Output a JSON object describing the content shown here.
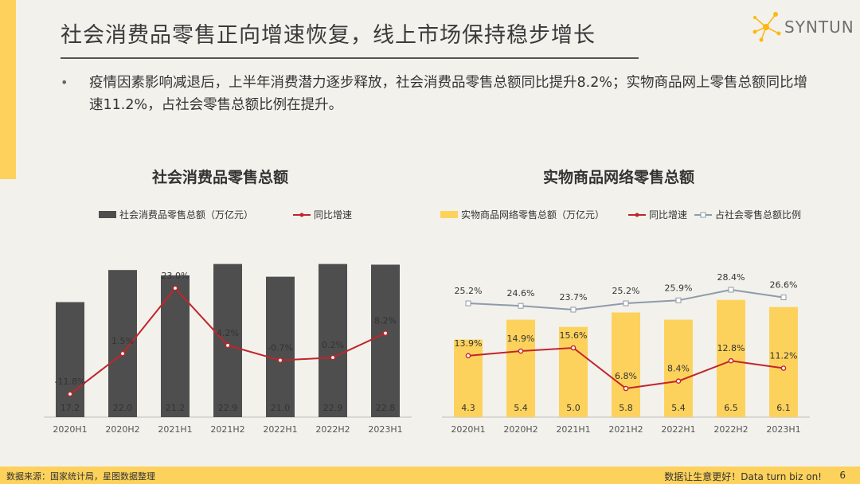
{
  "header": {
    "title": "社会消费品零售正向增速恢复，线上市场保持稳步增长",
    "logo_text": "SYNTUN"
  },
  "bullet": {
    "text": "疫情因素影响减退后，上半年消费潜力逐步释放，社会消费品零售总额同比提升8.2%；实物商品网上零售总额同比增速11.2%，占社会零售总额比例在提升。"
  },
  "footer": {
    "source": "数据来源：国家统计局，星图数据整理",
    "slogan": "数据让生意更好！Data turn biz on!",
    "page": "6"
  },
  "colors": {
    "dark_bar": "#4E4E4E",
    "yellow_bar": "#FDD25C",
    "red_line": "#C0252B",
    "gray_line": "#8E9BAA",
    "accent": "#FDD25C"
  },
  "chart_data": [
    {
      "type": "bar",
      "title": "社会消费品零售总额",
      "categories": [
        "2020H1",
        "2020H2",
        "2021H1",
        "2021H2",
        "2022H1",
        "2022H2",
        "2023H1"
      ],
      "series": [
        {
          "name": "社会消费品零售总额（万亿元）",
          "type": "bar",
          "values": [
            17.2,
            22.0,
            21.2,
            22.9,
            21.0,
            22.9,
            22.8
          ],
          "labels": [
            "17.2",
            "22.0",
            "21.2",
            "22.9",
            "21.0",
            "22.9",
            "22.8"
          ]
        },
        {
          "name": "同比增速",
          "type": "line",
          "values": [
            -11.8,
            1.5,
            23.0,
            4.2,
            -0.7,
            0.2,
            8.2
          ],
          "labels": [
            "-11.8%",
            "1.5%",
            "23.0%",
            "4.2%",
            "-0.7%",
            "0.2%",
            "8.2%"
          ]
        }
      ],
      "legend": "top"
    },
    {
      "type": "bar",
      "title": "实物商品网络零售总额",
      "categories": [
        "2020H1",
        "2020H2",
        "2021H1",
        "2021H2",
        "2022H1",
        "2022H2",
        "2023H1"
      ],
      "series": [
        {
          "name": "实物商品网络零售总额（万亿元）",
          "type": "bar",
          "values": [
            4.3,
            5.4,
            5.0,
            5.8,
            5.4,
            6.5,
            6.1
          ],
          "labels": [
            "4.3",
            "5.4",
            "5.0",
            "5.8",
            "5.4",
            "6.5",
            "6.1"
          ]
        },
        {
          "name": "同比增速",
          "type": "line",
          "values": [
            13.9,
            14.9,
            15.6,
            6.8,
            8.4,
            12.8,
            11.2
          ],
          "labels": [
            "13.9%",
            "14.9%",
            "15.6%",
            "6.8%",
            "8.4%",
            "12.8%",
            "11.2%"
          ]
        },
        {
          "name": "占社会零售总额比例",
          "type": "line",
          "values": [
            25.2,
            24.6,
            23.7,
            25.2,
            25.9,
            28.4,
            26.6
          ],
          "labels": [
            "25.2%",
            "24.6%",
            "23.7%",
            "25.2%",
            "25.9%",
            "28.4%",
            "26.6%"
          ]
        }
      ],
      "legend": "top"
    }
  ]
}
